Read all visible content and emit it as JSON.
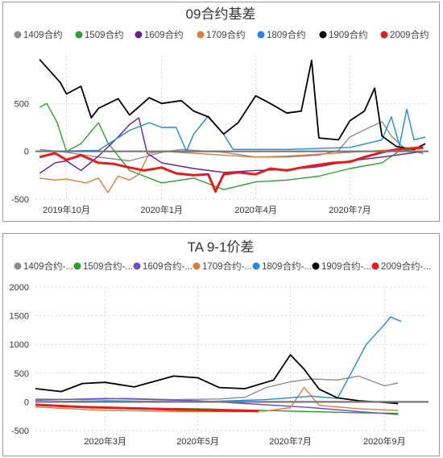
{
  "chart_data": [
    {
      "type": "line",
      "title": "09合约基差",
      "xlabel": "",
      "ylabel": "",
      "x_range": [
        "2019-09-01",
        "2020-09-15"
      ],
      "ylim": [
        -500,
        1000
      ],
      "y_ticks": [
        500,
        0,
        -500
      ],
      "x_ticks": [
        {
          "label": "2019年10月",
          "date": "2019-10-01"
        },
        {
          "label": "2020年1月",
          "date": "2020-01-01"
        },
        {
          "label": "2020年4月",
          "date": "2020-04-01"
        },
        {
          "label": "2020年7月",
          "date": "2020-07-01"
        }
      ],
      "zero_line": true,
      "legend_position": "top",
      "series": [
        {
          "name": "1409合约",
          "color": "#8c8c8c",
          "values": [
            [
              "2019-09-05",
              20
            ],
            [
              "2019-10-01",
              -10
            ],
            [
              "2019-11-01",
              -60
            ],
            [
              "2019-12-01",
              -100
            ],
            [
              "2020-01-01",
              -10
            ],
            [
              "2020-01-20",
              20
            ],
            [
              "2020-02-01",
              10
            ],
            [
              "2020-03-01",
              -10
            ],
            [
              "2020-04-01",
              -60
            ],
            [
              "2020-05-01",
              -60
            ],
            [
              "2020-06-01",
              -40
            ],
            [
              "2020-06-20",
              10
            ],
            [
              "2020-07-01",
              150
            ],
            [
              "2020-07-20",
              250
            ],
            [
              "2020-08-01",
              310
            ],
            [
              "2020-08-10",
              160
            ],
            [
              "2020-08-25",
              10
            ],
            [
              "2020-09-10",
              30
            ]
          ]
        },
        {
          "name": "1509合约",
          "color": "#2ca02c",
          "values": [
            [
              "2019-09-05",
              460
            ],
            [
              "2019-09-12",
              500
            ],
            [
              "2019-09-22",
              300
            ],
            [
              "2019-10-01",
              0
            ],
            [
              "2019-10-15",
              80
            ],
            [
              "2019-11-01",
              300
            ],
            [
              "2019-11-10",
              90
            ],
            [
              "2019-12-01",
              -200
            ],
            [
              "2020-01-01",
              -330
            ],
            [
              "2020-02-01",
              -280
            ],
            [
              "2020-03-01",
              -400
            ],
            [
              "2020-04-01",
              -320
            ],
            [
              "2020-05-01",
              -300
            ],
            [
              "2020-06-01",
              -260
            ],
            [
              "2020-07-01",
              -180
            ],
            [
              "2020-08-01",
              -120
            ],
            [
              "2020-08-20",
              20
            ],
            [
              "2020-09-10",
              -20
            ]
          ]
        },
        {
          "name": "1609合约",
          "color": "#6a1b9a",
          "values": [
            [
              "2019-09-05",
              -230
            ],
            [
              "2019-09-20",
              -120
            ],
            [
              "2019-10-01",
              -100
            ],
            [
              "2019-10-15",
              -200
            ],
            [
              "2019-11-01",
              -50
            ],
            [
              "2019-11-20",
              150
            ],
            [
              "2019-12-01",
              280
            ],
            [
              "2019-12-10",
              350
            ],
            [
              "2019-12-18",
              -20
            ],
            [
              "2020-01-01",
              -120
            ],
            [
              "2020-02-01",
              -180
            ],
            [
              "2020-03-01",
              -220
            ],
            [
              "2020-04-01",
              -200
            ],
            [
              "2020-05-01",
              -190
            ],
            [
              "2020-06-01",
              -160
            ],
            [
              "2020-07-01",
              -100
            ],
            [
              "2020-08-01",
              -60
            ],
            [
              "2020-09-10",
              0
            ]
          ]
        },
        {
          "name": "1709合约",
          "color": "#e07b39",
          "values": [
            [
              "2019-09-05",
              -280
            ],
            [
              "2019-09-20",
              -300
            ],
            [
              "2019-10-01",
              -290
            ],
            [
              "2019-10-20",
              -330
            ],
            [
              "2019-11-01",
              -280
            ],
            [
              "2019-11-10",
              -430
            ],
            [
              "2019-11-20",
              -260
            ],
            [
              "2019-12-01",
              -300
            ],
            [
              "2019-12-10",
              -240
            ],
            [
              "2019-12-20",
              -20
            ],
            [
              "2020-01-01",
              0
            ],
            [
              "2020-02-01",
              -20
            ],
            [
              "2020-03-01",
              -40
            ],
            [
              "2020-04-01",
              -60
            ],
            [
              "2020-05-01",
              -50
            ],
            [
              "2020-06-01",
              -30
            ],
            [
              "2020-07-01",
              -10
            ],
            [
              "2020-08-01",
              10
            ],
            [
              "2020-09-10",
              30
            ]
          ]
        },
        {
          "name": "1809合约",
          "color": "#1e88e5",
          "values": [
            [
              "2019-09-05",
              0
            ],
            [
              "2019-11-01",
              10
            ],
            [
              "2019-12-01",
              220
            ],
            [
              "2019-12-20",
              300
            ],
            [
              "2020-01-01",
              250
            ],
            [
              "2020-01-15",
              250
            ],
            [
              "2020-01-25",
              0
            ],
            [
              "2020-02-01",
              180
            ],
            [
              "2020-02-15",
              370
            ],
            [
              "2020-03-01",
              180
            ],
            [
              "2020-03-10",
              20
            ],
            [
              "2020-04-01",
              20
            ],
            [
              "2020-05-01",
              20
            ],
            [
              "2020-06-01",
              30
            ],
            [
              "2020-07-01",
              40
            ],
            [
              "2020-08-01",
              120
            ],
            [
              "2020-08-10",
              360
            ],
            [
              "2020-08-18",
              60
            ],
            [
              "2020-08-25",
              440
            ],
            [
              "2020-09-01",
              120
            ],
            [
              "2020-09-12",
              150
            ]
          ]
        },
        {
          "name": "1909合约",
          "color": "#000000",
          "values": [
            [
              "2019-09-05",
              960
            ],
            [
              "2019-09-25",
              720
            ],
            [
              "2019-10-01",
              600
            ],
            [
              "2019-10-15",
              680
            ],
            [
              "2019-10-25",
              350
            ],
            [
              "2019-11-01",
              450
            ],
            [
              "2019-11-20",
              550
            ],
            [
              "2019-12-01",
              380
            ],
            [
              "2019-12-20",
              560
            ],
            [
              "2020-01-01",
              500
            ],
            [
              "2020-01-20",
              530
            ],
            [
              "2020-02-01",
              420
            ],
            [
              "2020-02-15",
              360
            ],
            [
              "2020-03-01",
              180
            ],
            [
              "2020-03-15",
              300
            ],
            [
              "2020-04-01",
              580
            ],
            [
              "2020-04-15",
              500
            ],
            [
              "2020-05-01",
              400
            ],
            [
              "2020-05-15",
              420
            ],
            [
              "2020-05-25",
              950
            ],
            [
              "2020-06-01",
              140
            ],
            [
              "2020-06-20",
              120
            ],
            [
              "2020-07-01",
              320
            ],
            [
              "2020-07-15",
              420
            ],
            [
              "2020-07-25",
              660
            ],
            [
              "2020-08-01",
              160
            ],
            [
              "2020-08-15",
              50
            ],
            [
              "2020-09-01",
              20
            ],
            [
              "2020-09-12",
              80
            ]
          ]
        },
        {
          "name": "2009合约",
          "color": "#e51c1c",
          "values": [
            [
              "2019-09-05",
              -60
            ],
            [
              "2019-09-20",
              -20
            ],
            [
              "2019-10-01",
              -90
            ],
            [
              "2019-10-15",
              -40
            ],
            [
              "2019-11-01",
              -120
            ],
            [
              "2019-11-15",
              -130
            ],
            [
              "2019-12-01",
              -170
            ],
            [
              "2019-12-15",
              -200
            ],
            [
              "2020-01-01",
              -170
            ],
            [
              "2020-01-15",
              -230
            ],
            [
              "2020-02-01",
              -250
            ],
            [
              "2020-02-15",
              -240
            ],
            [
              "2020-02-22",
              -420
            ],
            [
              "2020-03-01",
              -240
            ],
            [
              "2020-03-15",
              -220
            ],
            [
              "2020-04-01",
              -240
            ],
            [
              "2020-04-15",
              -180
            ],
            [
              "2020-05-01",
              -200
            ],
            [
              "2020-05-15",
              -170
            ],
            [
              "2020-06-01",
              -140
            ],
            [
              "2020-06-15",
              -120
            ],
            [
              "2020-07-01",
              -110
            ],
            [
              "2020-07-15",
              -60
            ],
            [
              "2020-08-01",
              -10
            ],
            [
              "2020-08-15",
              20
            ],
            [
              "2020-09-10",
              40
            ]
          ]
        }
      ]
    },
    {
      "type": "line",
      "title": "TA 9-1价差",
      "xlabel": "",
      "ylabel": "",
      "x_range": [
        "2020-01-15",
        "2020-09-30"
      ],
      "ylim": [
        -500,
        2000
      ],
      "y_ticks": [
        2000,
        1500,
        1000,
        500,
        0,
        -500
      ],
      "x_ticks": [
        {
          "label": "2020年3月",
          "date": "2020-03-01"
        },
        {
          "label": "2020年5月",
          "date": "2020-05-01"
        },
        {
          "label": "2020年7月",
          "date": "2020-07-01"
        },
        {
          "label": "2020年9月",
          "date": "2020-09-01"
        }
      ],
      "zero_line": true,
      "legend_position": "top",
      "series": [
        {
          "name": "1409合约-...",
          "color": "#8c8c8c",
          "values": [
            [
              "2020-01-15",
              50
            ],
            [
              "2020-02-15",
              40
            ],
            [
              "2020-03-15",
              60
            ],
            [
              "2020-04-15",
              40
            ],
            [
              "2020-05-15",
              50
            ],
            [
              "2020-06-01",
              80
            ],
            [
              "2020-06-15",
              250
            ],
            [
              "2020-07-01",
              350
            ],
            [
              "2020-07-15",
              400
            ],
            [
              "2020-08-01",
              380
            ],
            [
              "2020-08-15",
              450
            ],
            [
              "2020-09-01",
              280
            ],
            [
              "2020-09-10",
              330
            ]
          ]
        },
        {
          "name": "1509合约-...",
          "color": "#2ca02c",
          "values": [
            [
              "2020-01-15",
              -60
            ],
            [
              "2020-03-01",
              -100
            ],
            [
              "2020-05-01",
              -120
            ],
            [
              "2020-06-15",
              -150
            ],
            [
              "2020-07-15",
              -170
            ],
            [
              "2020-08-15",
              -190
            ],
            [
              "2020-09-10",
              -200
            ]
          ]
        },
        {
          "name": "1609合约-...",
          "color": "#6a4ec8",
          "values": [
            [
              "2020-01-15",
              30
            ],
            [
              "2020-03-01",
              60
            ],
            [
              "2020-05-01",
              20
            ],
            [
              "2020-06-15",
              -50
            ],
            [
              "2020-07-15",
              -100
            ],
            [
              "2020-08-15",
              -170
            ],
            [
              "2020-09-10",
              -220
            ]
          ]
        },
        {
          "name": "1709合约-...",
          "color": "#e07b39",
          "values": [
            [
              "2020-01-15",
              -90
            ],
            [
              "2020-03-01",
              -150
            ],
            [
              "2020-05-01",
              -170
            ],
            [
              "2020-06-15",
              -160
            ],
            [
              "2020-07-01",
              -100
            ],
            [
              "2020-07-10",
              250
            ],
            [
              "2020-07-20",
              -60
            ],
            [
              "2020-08-15",
              -120
            ],
            [
              "2020-09-10",
              -150
            ]
          ]
        },
        {
          "name": "1809合约-...",
          "color": "#1e88e5",
          "values": [
            [
              "2020-01-15",
              0
            ],
            [
              "2020-03-01",
              20
            ],
            [
              "2020-05-01",
              0
            ],
            [
              "2020-06-15",
              40
            ],
            [
              "2020-07-15",
              100
            ],
            [
              "2020-08-01",
              60
            ],
            [
              "2020-08-10",
              500
            ],
            [
              "2020-08-20",
              1000
            ],
            [
              "2020-09-01",
              1350
            ],
            [
              "2020-09-05",
              1480
            ],
            [
              "2020-09-12",
              1400
            ]
          ]
        },
        {
          "name": "1909合约-...",
          "color": "#000000",
          "values": [
            [
              "2020-01-15",
              230
            ],
            [
              "2020-02-01",
              180
            ],
            [
              "2020-02-15",
              320
            ],
            [
              "2020-03-01",
              340
            ],
            [
              "2020-03-20",
              260
            ],
            [
              "2020-04-15",
              450
            ],
            [
              "2020-05-01",
              420
            ],
            [
              "2020-05-15",
              250
            ],
            [
              "2020-06-01",
              230
            ],
            [
              "2020-06-20",
              380
            ],
            [
              "2020-07-01",
              820
            ],
            [
              "2020-07-10",
              570
            ],
            [
              "2020-07-20",
              220
            ],
            [
              "2020-08-01",
              70
            ],
            [
              "2020-08-15",
              20
            ],
            [
              "2020-09-01",
              -10
            ],
            [
              "2020-09-10",
              -30
            ]
          ]
        },
        {
          "name": "2009合约-...",
          "color": "#e51c1c",
          "values": [
            [
              "2020-01-15",
              -50
            ],
            [
              "2020-02-15",
              -90
            ],
            [
              "2020-03-15",
              -110
            ],
            [
              "2020-04-15",
              -130
            ],
            [
              "2020-05-15",
              -150
            ],
            [
              "2020-06-10",
              -160
            ]
          ]
        }
      ]
    }
  ]
}
